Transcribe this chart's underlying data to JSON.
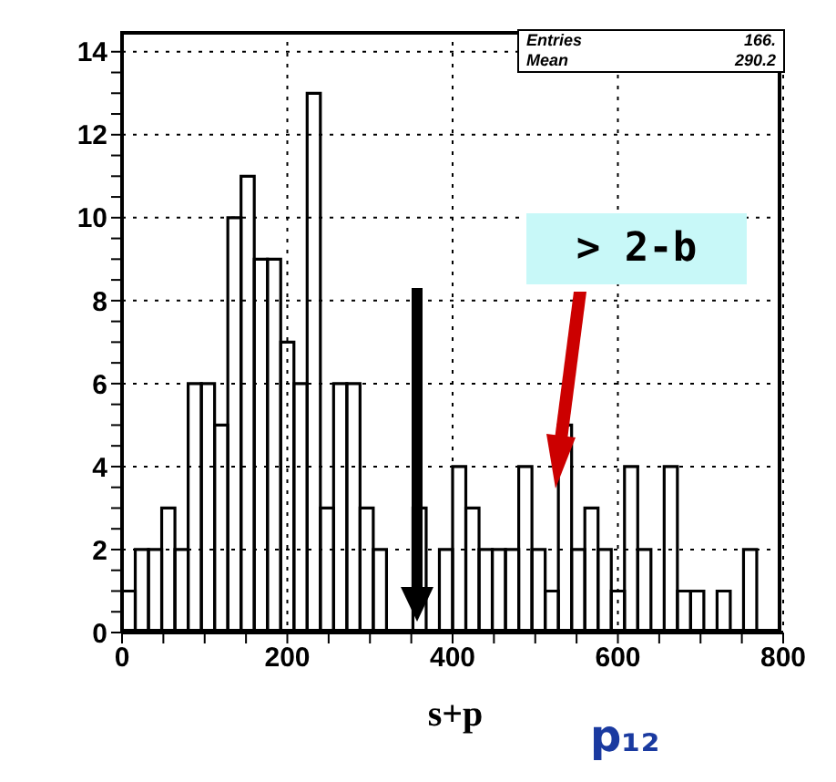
{
  "chart_data": {
    "type": "histogram",
    "xlabel": "s+p",
    "bins": [
      0,
      16,
      32,
      48,
      64,
      80,
      96,
      112,
      128,
      144,
      160,
      176,
      192,
      208,
      224,
      240,
      256,
      272,
      288,
      304,
      320,
      336,
      352,
      368,
      384,
      400,
      416,
      432,
      448,
      464,
      480,
      496,
      512,
      528,
      544,
      560,
      576,
      592,
      608,
      624,
      640,
      656,
      672,
      688,
      704,
      720,
      736,
      752,
      768,
      784,
      800
    ],
    "values": [
      1,
      2,
      2,
      3,
      2,
      6,
      6,
      5,
      10,
      11,
      9,
      9,
      7,
      6,
      13,
      3,
      6,
      6,
      3,
      2,
      0,
      0,
      3,
      0,
      2,
      4,
      3,
      2,
      2,
      2,
      4,
      2,
      1,
      5,
      2,
      3,
      2,
      1,
      4,
      2,
      0,
      4,
      1,
      1,
      0,
      1,
      0,
      2,
      0,
      0
    ],
    "color": "#000000",
    "xlim": [
      0,
      800
    ],
    "xticks": [
      0,
      {
        "value": 50,
        "label": null
      },
      {
        "value": 100,
        "label": null
      },
      {
        "value": 150,
        "label": null
      },
      200,
      {
        "value": 250,
        "label": null
      },
      {
        "value": 300,
        "label": null
      },
      {
        "value": 350,
        "label": null
      },
      400,
      {
        "value": 450,
        "label": null
      },
      {
        "value": 500,
        "label": null
      },
      {
        "value": 550,
        "label": null
      },
      600,
      {
        "value": 650,
        "label": null
      },
      {
        "value": 700,
        "label": null
      },
      {
        "value": 750,
        "label": null
      },
      800
    ],
    "ylim": [
      0,
      14.5
    ],
    "yticks": [
      0,
      {
        "value": 0.5,
        "label": null
      },
      {
        "value": 1,
        "label": null
      },
      {
        "value": 1.5,
        "label": null
      },
      2,
      {
        "value": 2.5,
        "label": null
      },
      {
        "value": 3,
        "label": null
      },
      {
        "value": 3.5,
        "label": null
      },
      4,
      {
        "value": 4.5,
        "label": null
      },
      {
        "value": 5,
        "label": null
      },
      {
        "value": 5.5,
        "label": null
      },
      6,
      {
        "value": 6.5,
        "label": null
      },
      {
        "value": 7,
        "label": null
      },
      {
        "value": 7.5,
        "label": null
      },
      8,
      {
        "value": 8.5,
        "label": null
      },
      {
        "value": 9,
        "label": null
      },
      {
        "value": 9.5,
        "label": null
      },
      10,
      {
        "value": 10.5,
        "label": null
      },
      {
        "value": 11,
        "label": null
      },
      {
        "value": 11.5,
        "label": null
      },
      12,
      {
        "value": 12.5,
        "label": null
      },
      {
        "value": 13,
        "label": null
      },
      {
        "value": 13.5,
        "label": null
      },
      14
    ],
    "grid": true,
    "annotations": [
      "Entries 166.",
      "Mean 290.2",
      "> 2-b",
      "p₁₂"
    ]
  }
}
